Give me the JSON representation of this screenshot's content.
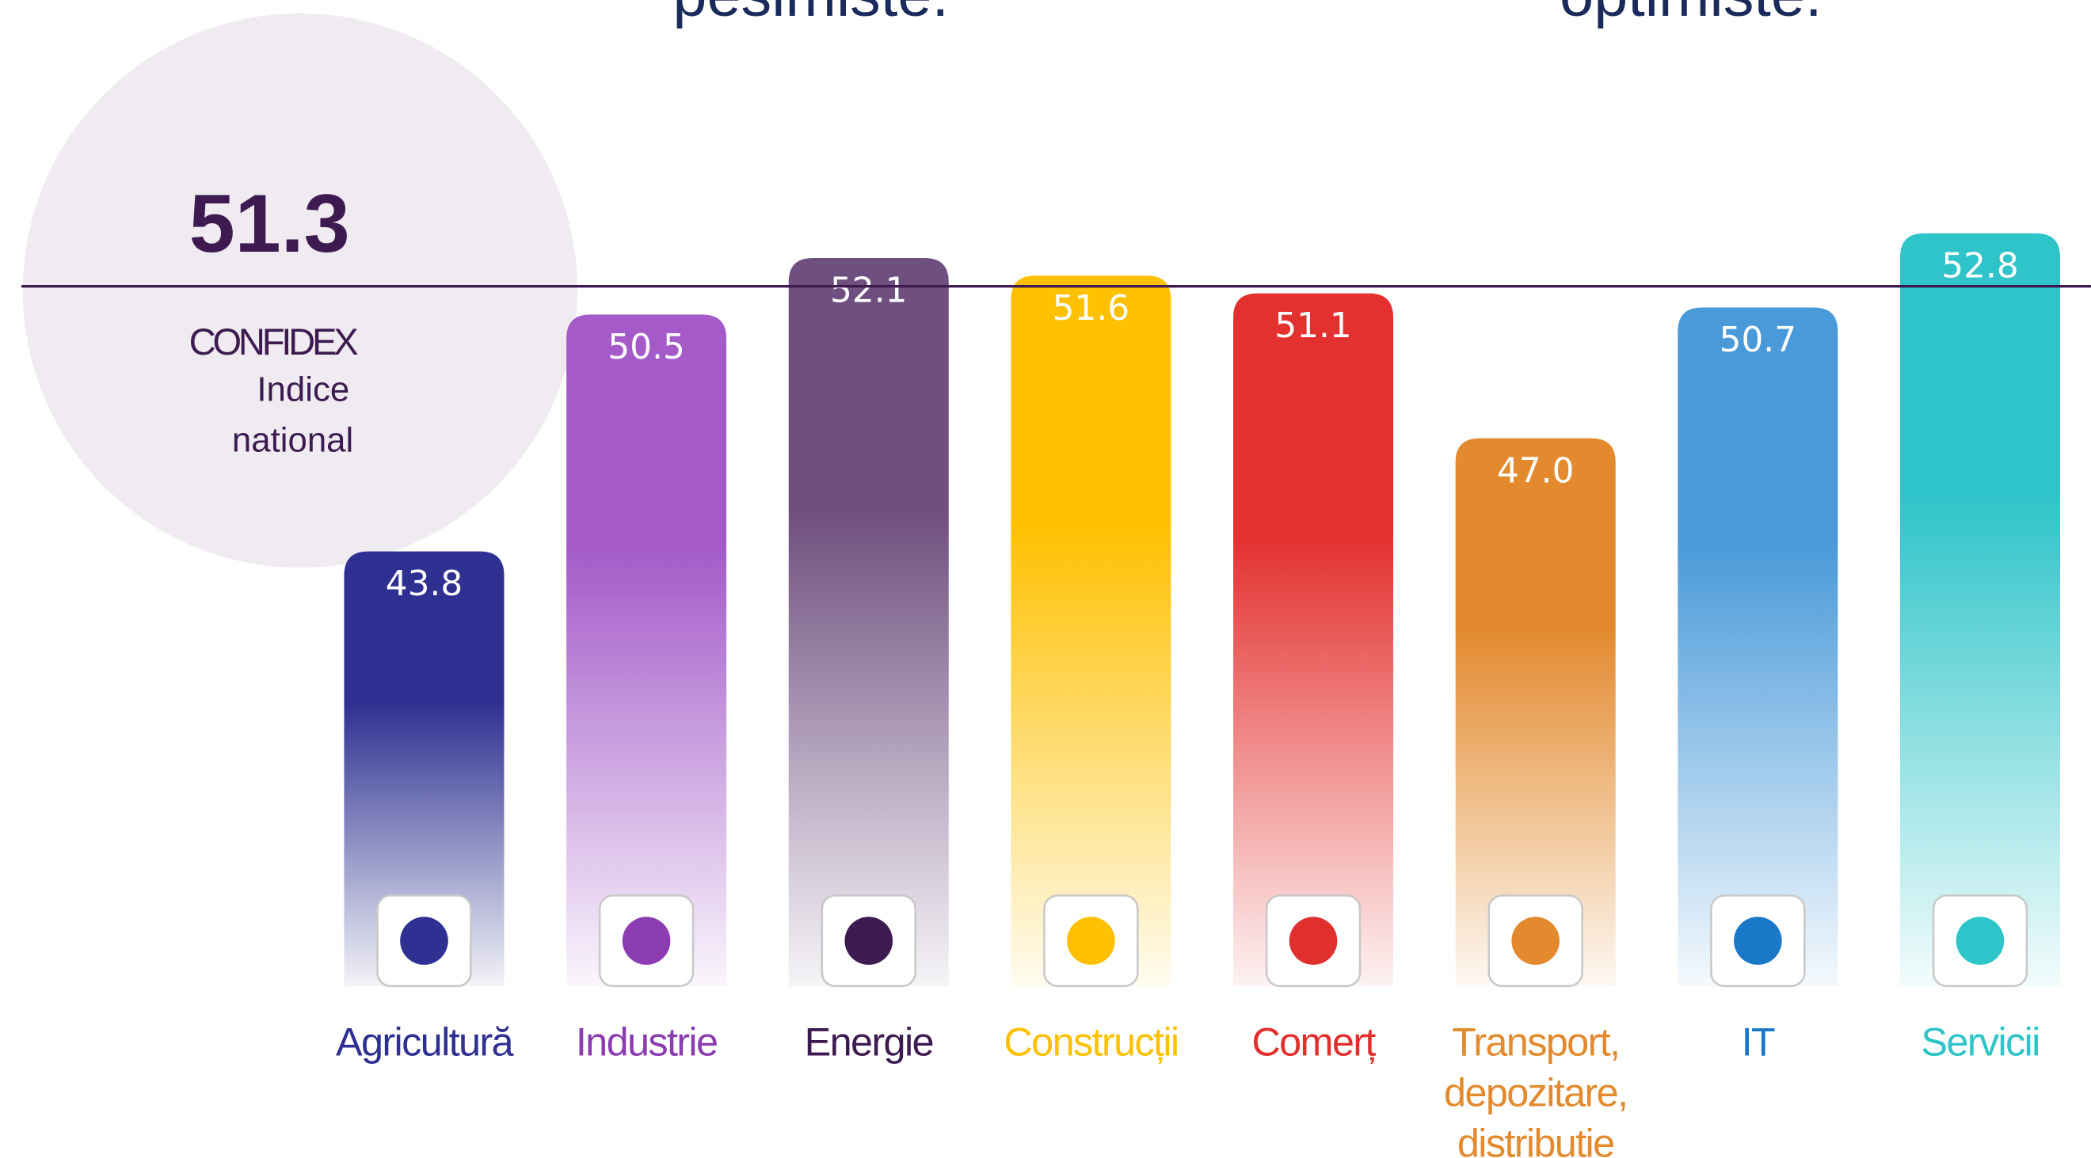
{
  "chart_data": {
    "type": "bar",
    "annotations": [
      "pesimiste.",
      "optimiste."
    ],
    "reference": {
      "value": 51.3,
      "label": "51.3",
      "name": "CONFIDEX",
      "caption": [
        "Indice",
        "national"
      ],
      "color": "#3d1a4f"
    },
    "categories": [
      "Agricultură",
      "Industrie",
      "Energie",
      "Construcții",
      "Comerț",
      "Transport, depozitare, distribuție",
      "IT",
      "Servicii"
    ],
    "values": [
      43.8,
      50.5,
      52.1,
      51.6,
      51.1,
      47.0,
      50.7,
      52.8
    ],
    "value_labels": [
      "43.8",
      "50.5",
      "52.1",
      "51.6",
      "51.1",
      "47.0",
      "50.7",
      "52.8"
    ],
    "colors": [
      "#2e3192",
      "#a45bc9",
      "#6f4f7f",
      "#ffc000",
      "#e3312f",
      "#e38a2e",
      "#4a9ad9",
      "#2ec4c9"
    ],
    "label_colors": [
      "#2e3192",
      "#8a3cb0",
      "#3d1a4f",
      "#ffc000",
      "#e0302e",
      "#e38a2e",
      "#1a78c8",
      "#2ec4c9"
    ],
    "ylim": [
      31.5,
      59.4
    ]
  }
}
